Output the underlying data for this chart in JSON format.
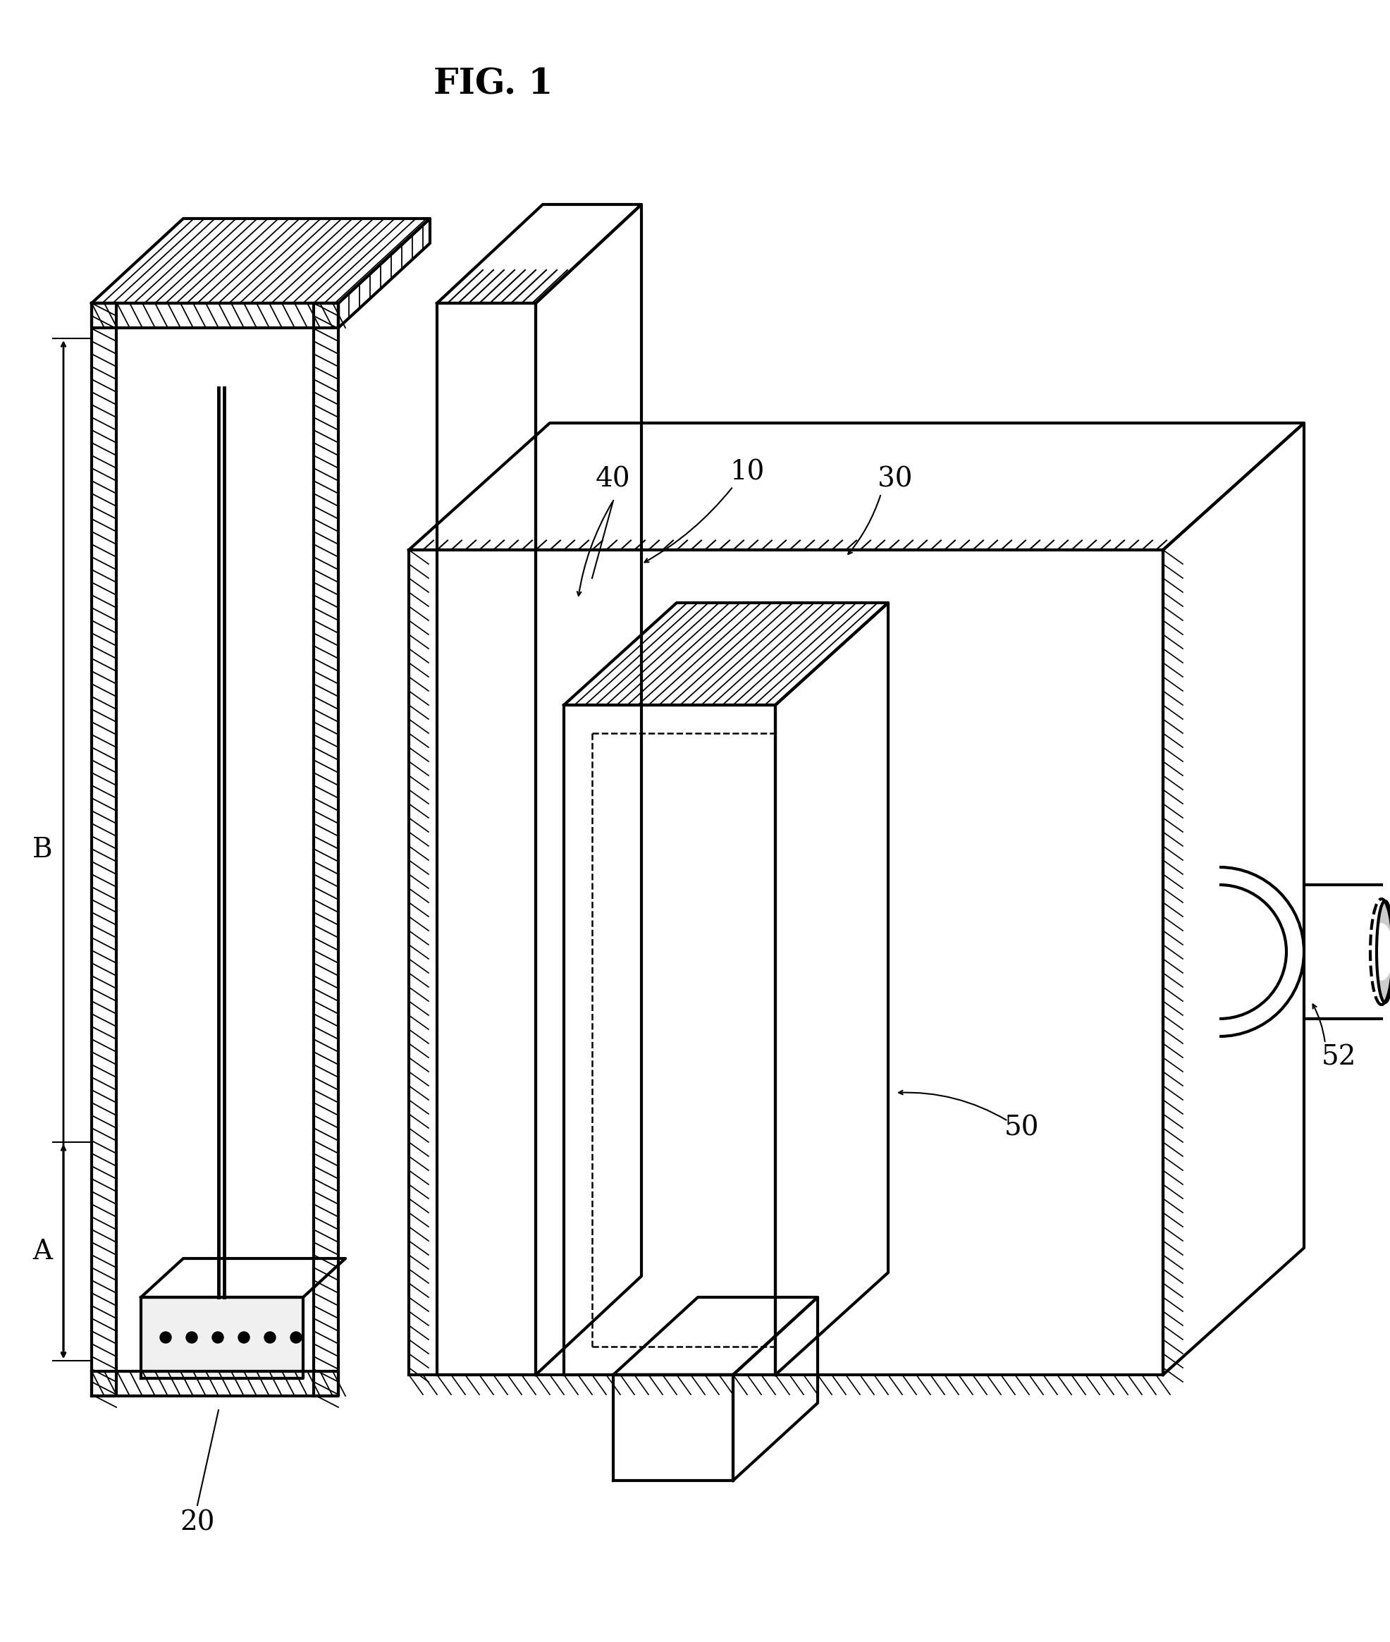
{
  "title": "FIG. 1",
  "bg_color": "#ffffff",
  "line_color": "#000000",
  "hatch_color": "#000000",
  "label_10": "10",
  "label_20": "20",
  "label_30": "30",
  "label_40": "40",
  "label_50": "50",
  "label_52": "52",
  "label_A": "A",
  "label_B": "B",
  "title_fontsize": 36,
  "label_fontsize": 28
}
